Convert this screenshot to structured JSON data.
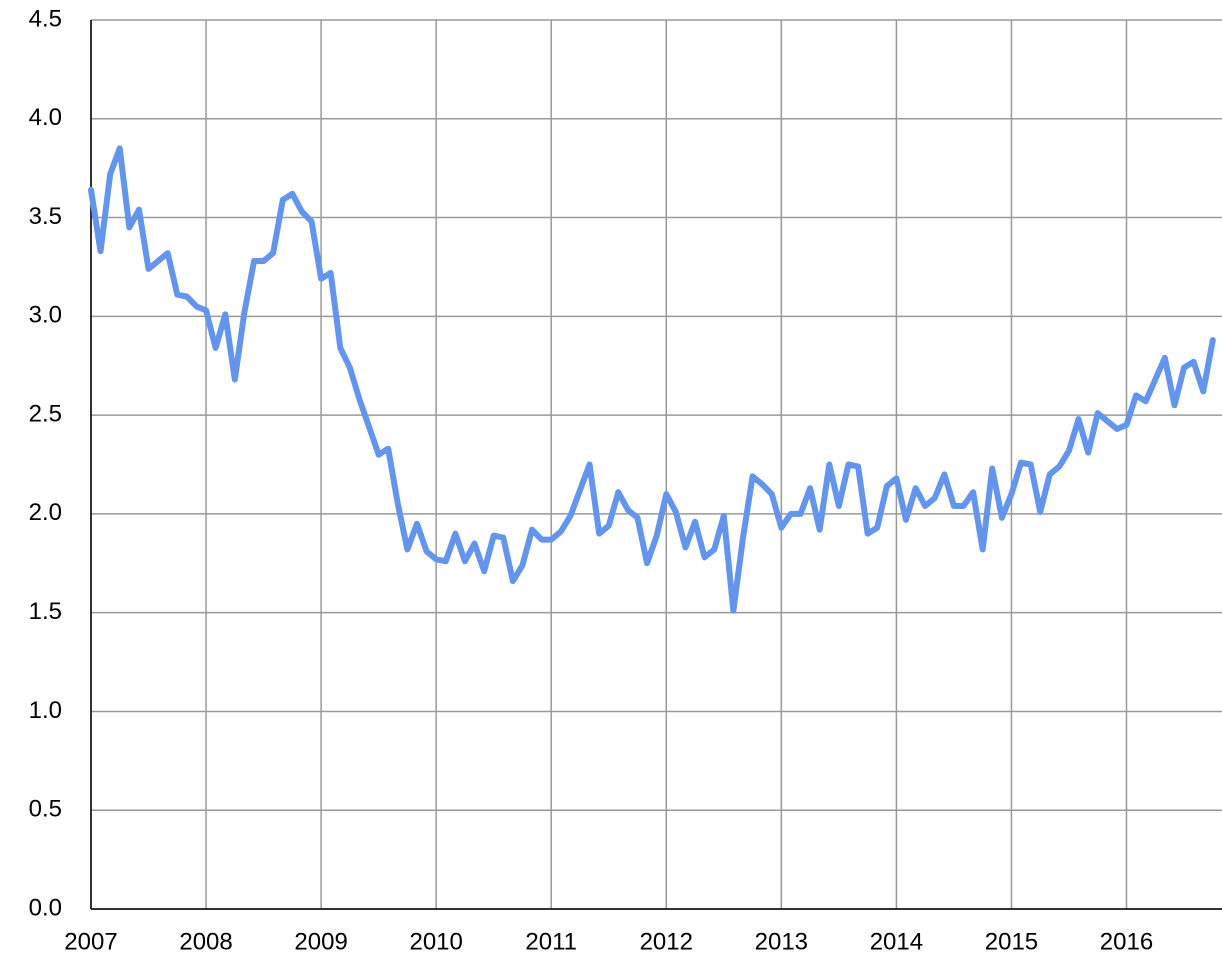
{
  "chart_data": {
    "type": "line",
    "x": [
      2007,
      2007.083,
      2007.167,
      2007.25,
      2007.333,
      2007.417,
      2007.5,
      2007.583,
      2007.667,
      2007.75,
      2007.833,
      2007.917,
      2008,
      2008.083,
      2008.167,
      2008.25,
      2008.333,
      2008.417,
      2008.5,
      2008.583,
      2008.667,
      2008.75,
      2008.833,
      2008.917,
      2009,
      2009.083,
      2009.167,
      2009.25,
      2009.333,
      2009.417,
      2009.5,
      2009.583,
      2009.667,
      2009.75,
      2009.833,
      2009.917,
      2010,
      2010.083,
      2010.167,
      2010.25,
      2010.333,
      2010.417,
      2010.5,
      2010.583,
      2010.667,
      2010.75,
      2010.833,
      2010.917,
      2011,
      2011.083,
      2011.167,
      2011.25,
      2011.333,
      2011.417,
      2011.5,
      2011.583,
      2011.667,
      2011.75,
      2011.833,
      2011.917,
      2012,
      2012.083,
      2012.167,
      2012.25,
      2012.333,
      2012.417,
      2012.5,
      2012.583,
      2012.667,
      2012.75,
      2012.833,
      2012.917,
      2013,
      2013.083,
      2013.167,
      2013.25,
      2013.333,
      2013.417,
      2013.5,
      2013.583,
      2013.667,
      2013.75,
      2013.833,
      2013.917,
      2014,
      2014.083,
      2014.167,
      2014.25,
      2014.333,
      2014.417,
      2014.5,
      2014.583,
      2014.667,
      2014.75,
      2014.833,
      2014.917,
      2015,
      2015.083,
      2015.167,
      2015.25,
      2015.333,
      2015.417,
      2015.5,
      2015.583,
      2015.667,
      2015.75,
      2015.833,
      2015.917,
      2016,
      2016.083,
      2016.167,
      2016.25,
      2016.333,
      2016.417,
      2016.5,
      2016.583,
      2016.667,
      2016.75
    ],
    "series": [
      {
        "color": "#6495ed",
        "values": [
          3.64,
          3.33,
          3.72,
          3.85,
          3.45,
          3.54,
          3.24,
          3.28,
          3.32,
          3.11,
          3.1,
          3.05,
          3.03,
          2.84,
          3.01,
          2.68,
          3.02,
          3.28,
          3.28,
          3.32,
          3.59,
          3.62,
          3.53,
          3.48,
          3.19,
          3.22,
          2.84,
          2.74,
          2.58,
          2.44,
          2.3,
          2.33,
          2.05,
          1.82,
          1.95,
          1.81,
          1.77,
          1.76,
          1.9,
          1.76,
          1.85,
          1.71,
          1.89,
          1.88,
          1.66,
          1.74,
          1.92,
          1.87,
          1.87,
          1.91,
          1.99,
          2.12,
          2.25,
          1.9,
          1.94,
          2.11,
          2.02,
          1.98,
          1.75,
          1.89,
          2.1,
          2.01,
          1.83,
          1.96,
          1.78,
          1.82,
          1.99,
          1.51,
          1.88,
          2.19,
          2.15,
          2.1,
          1.93,
          2.0,
          2.0,
          2.13,
          1.92,
          2.25,
          2.04,
          2.25,
          2.24,
          1.9,
          1.93,
          2.14,
          2.18,
          1.97,
          2.13,
          2.04,
          2.08,
          2.2,
          2.04,
          2.04,
          2.11,
          1.82,
          2.23,
          1.98,
          2.1,
          2.26,
          2.25,
          2.01,
          2.2,
          2.24,
          2.32,
          2.48,
          2.31,
          2.51,
          2.47,
          2.43,
          2.45,
          2.6,
          2.57,
          2.68,
          2.79,
          2.55,
          2.74,
          2.77,
          2.62,
          2.88
        ]
      }
    ],
    "xlim": [
      2007,
      2016.83
    ],
    "xticks": [
      2007,
      2008,
      2009,
      2010,
      2011,
      2012,
      2013,
      2014,
      2015,
      2016
    ],
    "ylim": [
      0,
      4.5
    ],
    "yticks": [
      {
        "value": 0,
        "label": "0.0"
      },
      {
        "value": 0.5,
        "label": "0.5"
      },
      {
        "value": 1,
        "label": "1.0"
      },
      {
        "value": 1.5,
        "label": "1.5"
      },
      {
        "value": 2,
        "label": "2.0"
      },
      {
        "value": 2.5,
        "label": "2.5"
      },
      {
        "value": 3,
        "label": "3.0"
      },
      {
        "value": 3.5,
        "label": "3.5"
      },
      {
        "value": 4,
        "label": "4.0"
      },
      {
        "value": 4.5,
        "label": "4.5"
      }
    ],
    "grid": true
  }
}
